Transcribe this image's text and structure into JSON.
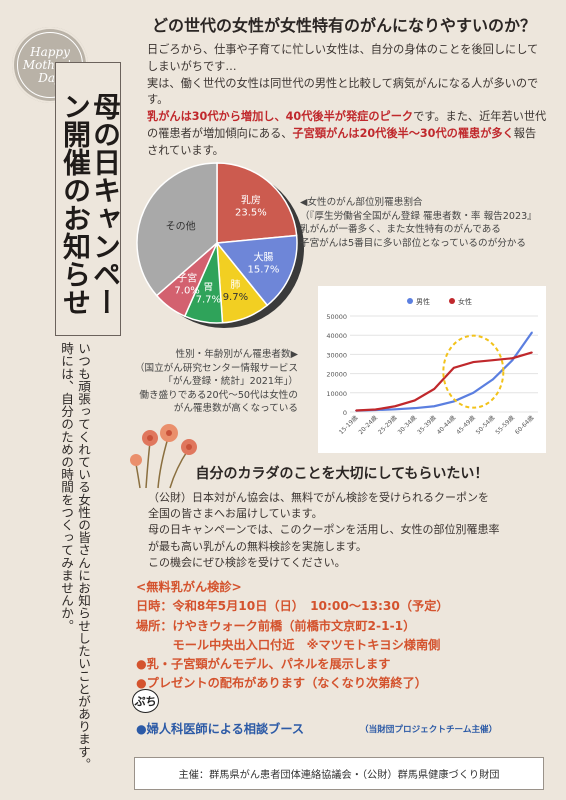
{
  "logo": {
    "line1": "Happy",
    "line2": "Mother's",
    "line3": "Day"
  },
  "title_vertical": "母の日キャンペーン開催のお知らせ",
  "body_vertical": {
    "col1": "いつも頑張ってくれている女性の皆さんにお知らせしたいことがあります。",
    "col2": "時には、自分のための時間をつくってみませんか。"
  },
  "heading": "どの世代の女性が女性特有のがんになりやすいのか？",
  "intro": {
    "p1": "日ごろから、仕事や子育てに忙しい女性は、自分の身体のことを後回しにしてしまいがちです…",
    "p2": "実は、働く世代の女性は同世代の男性と比較して病気がんになる人が多いのです。",
    "p3_red1": "乳がんは30代から増加し、40代後半が発症のピーク",
    "p3_mid": "です。また、近年若い世代の罹患者が増加傾向にある、",
    "p3_red2": "子宮頸がんは20代後半〜30代の罹患が多く",
    "p3_end": "報告されています。"
  },
  "pie_note": {
    "line1": "◀女性のがん部位別罹患割合",
    "line2": "（『厚生労働省全国がん登録 罹患者数・率 報告2023』",
    "line3": "乳がんが一番多く、また女性特有のがんである",
    "line4": "子宮がんは5番目に多い部位となっているのが分かる"
  },
  "age_note": {
    "line1": "性別・年齢別がん罹患者数▶",
    "line2": "（国立がん研究センター情報サービス",
    "line3": "「がん登録・統計」2021年」）",
    "line4": "働き盛りである20代〜50代は女性の",
    "line5": "がん罹患数が高くなっている"
  },
  "chart_data": [
    {
      "type": "pie",
      "slices": [
        {
          "label": "乳房",
          "value": 23.5,
          "display": "23.5%",
          "color": "#cc5b4f"
        },
        {
          "label": "大腸",
          "value": 15.7,
          "display": "15.7%",
          "color": "#6e86d8"
        },
        {
          "label": "肺",
          "value": 9.7,
          "display": "9.7%",
          "color": "#f2cf22"
        },
        {
          "label": "胃",
          "value": 7.7,
          "display": "7.7%",
          "color": "#2fa35a"
        },
        {
          "label": "子宮",
          "value": 7.0,
          "display": "7.0%",
          "color": "#d3616f"
        },
        {
          "label": "その他",
          "value": 36.4,
          "display": "",
          "color": "#a9a9a9"
        }
      ]
    },
    {
      "type": "line",
      "categories": [
        "15-19歳",
        "20-24歳",
        "25-29歳",
        "30-34歳",
        "35-39歳",
        "40-44歳",
        "45-49歳",
        "50-54歳",
        "55-59歳",
        "60-64歳"
      ],
      "series": [
        {
          "name": "男性",
          "color": "#5b7fe0",
          "values": [
            700,
            1000,
            1400,
            2000,
            3000,
            5500,
            10000,
            17000,
            27000,
            41500
          ]
        },
        {
          "name": "女性",
          "color": "#c0282c",
          "values": [
            800,
            1300,
            3000,
            6000,
            12000,
            23000,
            26000,
            27000,
            28000,
            31000
          ]
        }
      ],
      "yticks": [
        "0",
        "10000",
        "20000",
        "30000",
        "40000",
        "50000"
      ],
      "ylim": [
        0,
        50000
      ],
      "legend": "top-center",
      "grid": true
    }
  ],
  "mid_heading": "自分のカラダのことを大切にしてもらいたい！",
  "mid_body": {
    "line1": "（公財）日本対がん協会は、無料でがん検診を受けられるクーポンを",
    "line2": "全国の皆さまへお届けしています。",
    "line3": "母の日キャンペーンでは、このクーポンを活用し、女性の部位別罹患率",
    "line4": "が最も高い乳がんの無料検診を実施します。",
    "line5": "この機会にぜひ検診を受けてください。"
  },
  "details": {
    "r1": "<無料乳がん検診>",
    "r2": "日時：令和8年5月10日（日）　10:00〜13:30（予定）",
    "r3": "場所：けやきウォーク前橋（前橋市文京町2-1-1）",
    "r4": "　　　モール中央出入口付近　※マツモトキヨシ様南側",
    "r5": "●乳・子宮頸がんモデル、パネルを展示します",
    "r6": "●プレゼントの配布があります（なくなり次第終了）"
  },
  "puchi": "ぷち",
  "booth": "●婦人科医師による相談ブース",
  "booth_note": "（当財団プロジェクトチーム主催）",
  "footer": "主催：群馬県がん患者団体連絡協議会・（公財）群馬県健康づくり財団"
}
